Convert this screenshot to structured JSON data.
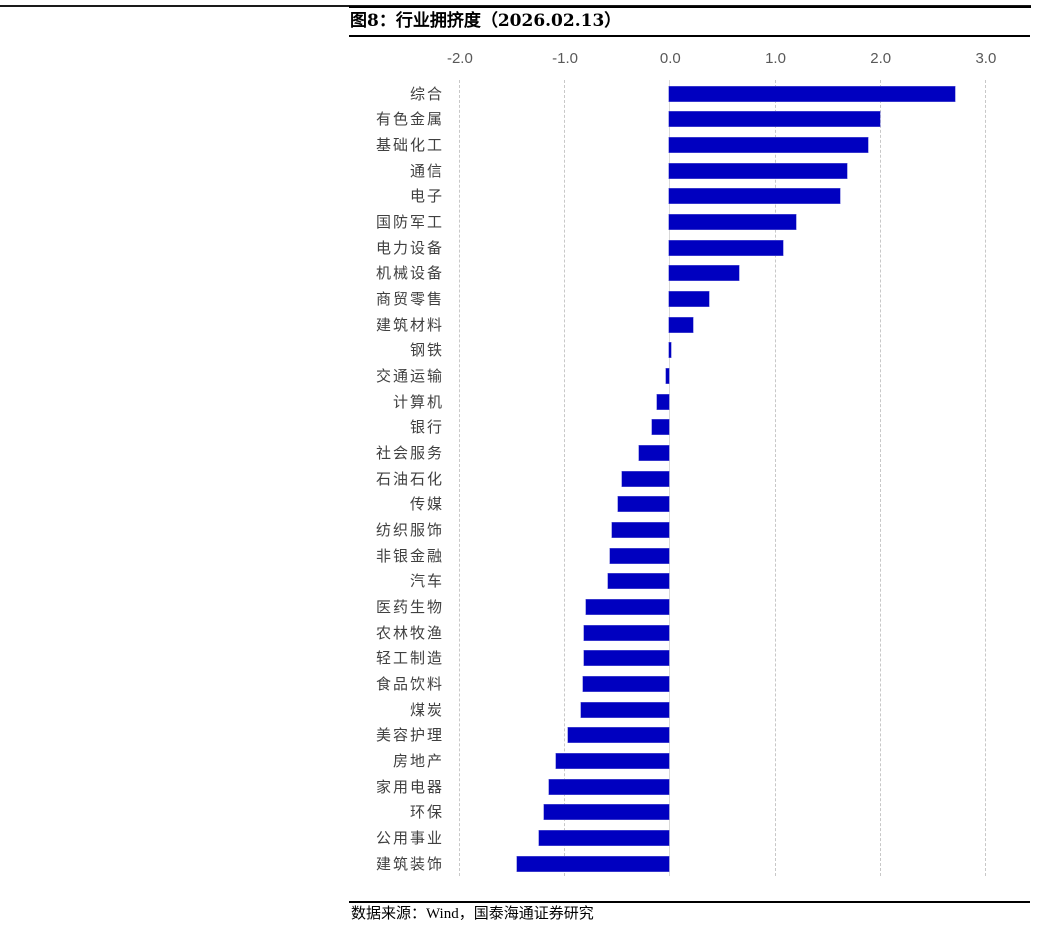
{
  "figure": {
    "title": "图8：行业拥挤度（2026.02.13）",
    "source": "数据来源：Wind，国泰海通证券研究"
  },
  "colors": {
    "bar": "#0000c0",
    "gridline": "#c8c8c8",
    "tick_text": "#595959",
    "label_text": "#404040"
  },
  "axis": {
    "ticks": [
      "-2.0",
      "-1.0",
      "0.0",
      "1.0",
      "2.0",
      "3.0"
    ],
    "tick_values": [
      -2,
      -1,
      0,
      1,
      2,
      3
    ]
  },
  "chart_data": {
    "type": "bar",
    "orientation": "horizontal",
    "title": "行业拥挤度（2026.02.13）",
    "xlabel": "",
    "ylabel": "",
    "xlim": [
      -2.1,
      3.2
    ],
    "x_ticks": [
      -2.0,
      -1.0,
      0.0,
      1.0,
      2.0,
      3.0
    ],
    "x_axis_position": "top",
    "grid": "vertical dashed",
    "legend": "none",
    "categories": [
      "综合",
      "有色金属",
      "基础化工",
      "通信",
      "电子",
      "国防军工",
      "电力设备",
      "机械设备",
      "商贸零售",
      "建筑材料",
      "钢铁",
      "交通运输",
      "计算机",
      "银行",
      "社会服务",
      "石油石化",
      "传媒",
      "纺织服饰",
      "非银金融",
      "汽车",
      "医药生物",
      "农林牧渔",
      "轻工制造",
      "食品饮料",
      "煤炭",
      "美容护理",
      "房地产",
      "家用电器",
      "环保",
      "公用事业",
      "建筑装饰"
    ],
    "values": [
      2.72,
      2.0,
      1.89,
      1.69,
      1.62,
      1.2,
      1.08,
      0.66,
      0.38,
      0.23,
      0.02,
      -0.03,
      -0.12,
      -0.16,
      -0.29,
      -0.45,
      -0.49,
      -0.54,
      -0.56,
      -0.58,
      -0.79,
      -0.81,
      -0.81,
      -0.82,
      -0.84,
      -0.96,
      -1.08,
      -1.14,
      -1.19,
      -1.24,
      -1.45
    ],
    "source": "数据来源：Wind，国泰海通证券研究"
  }
}
